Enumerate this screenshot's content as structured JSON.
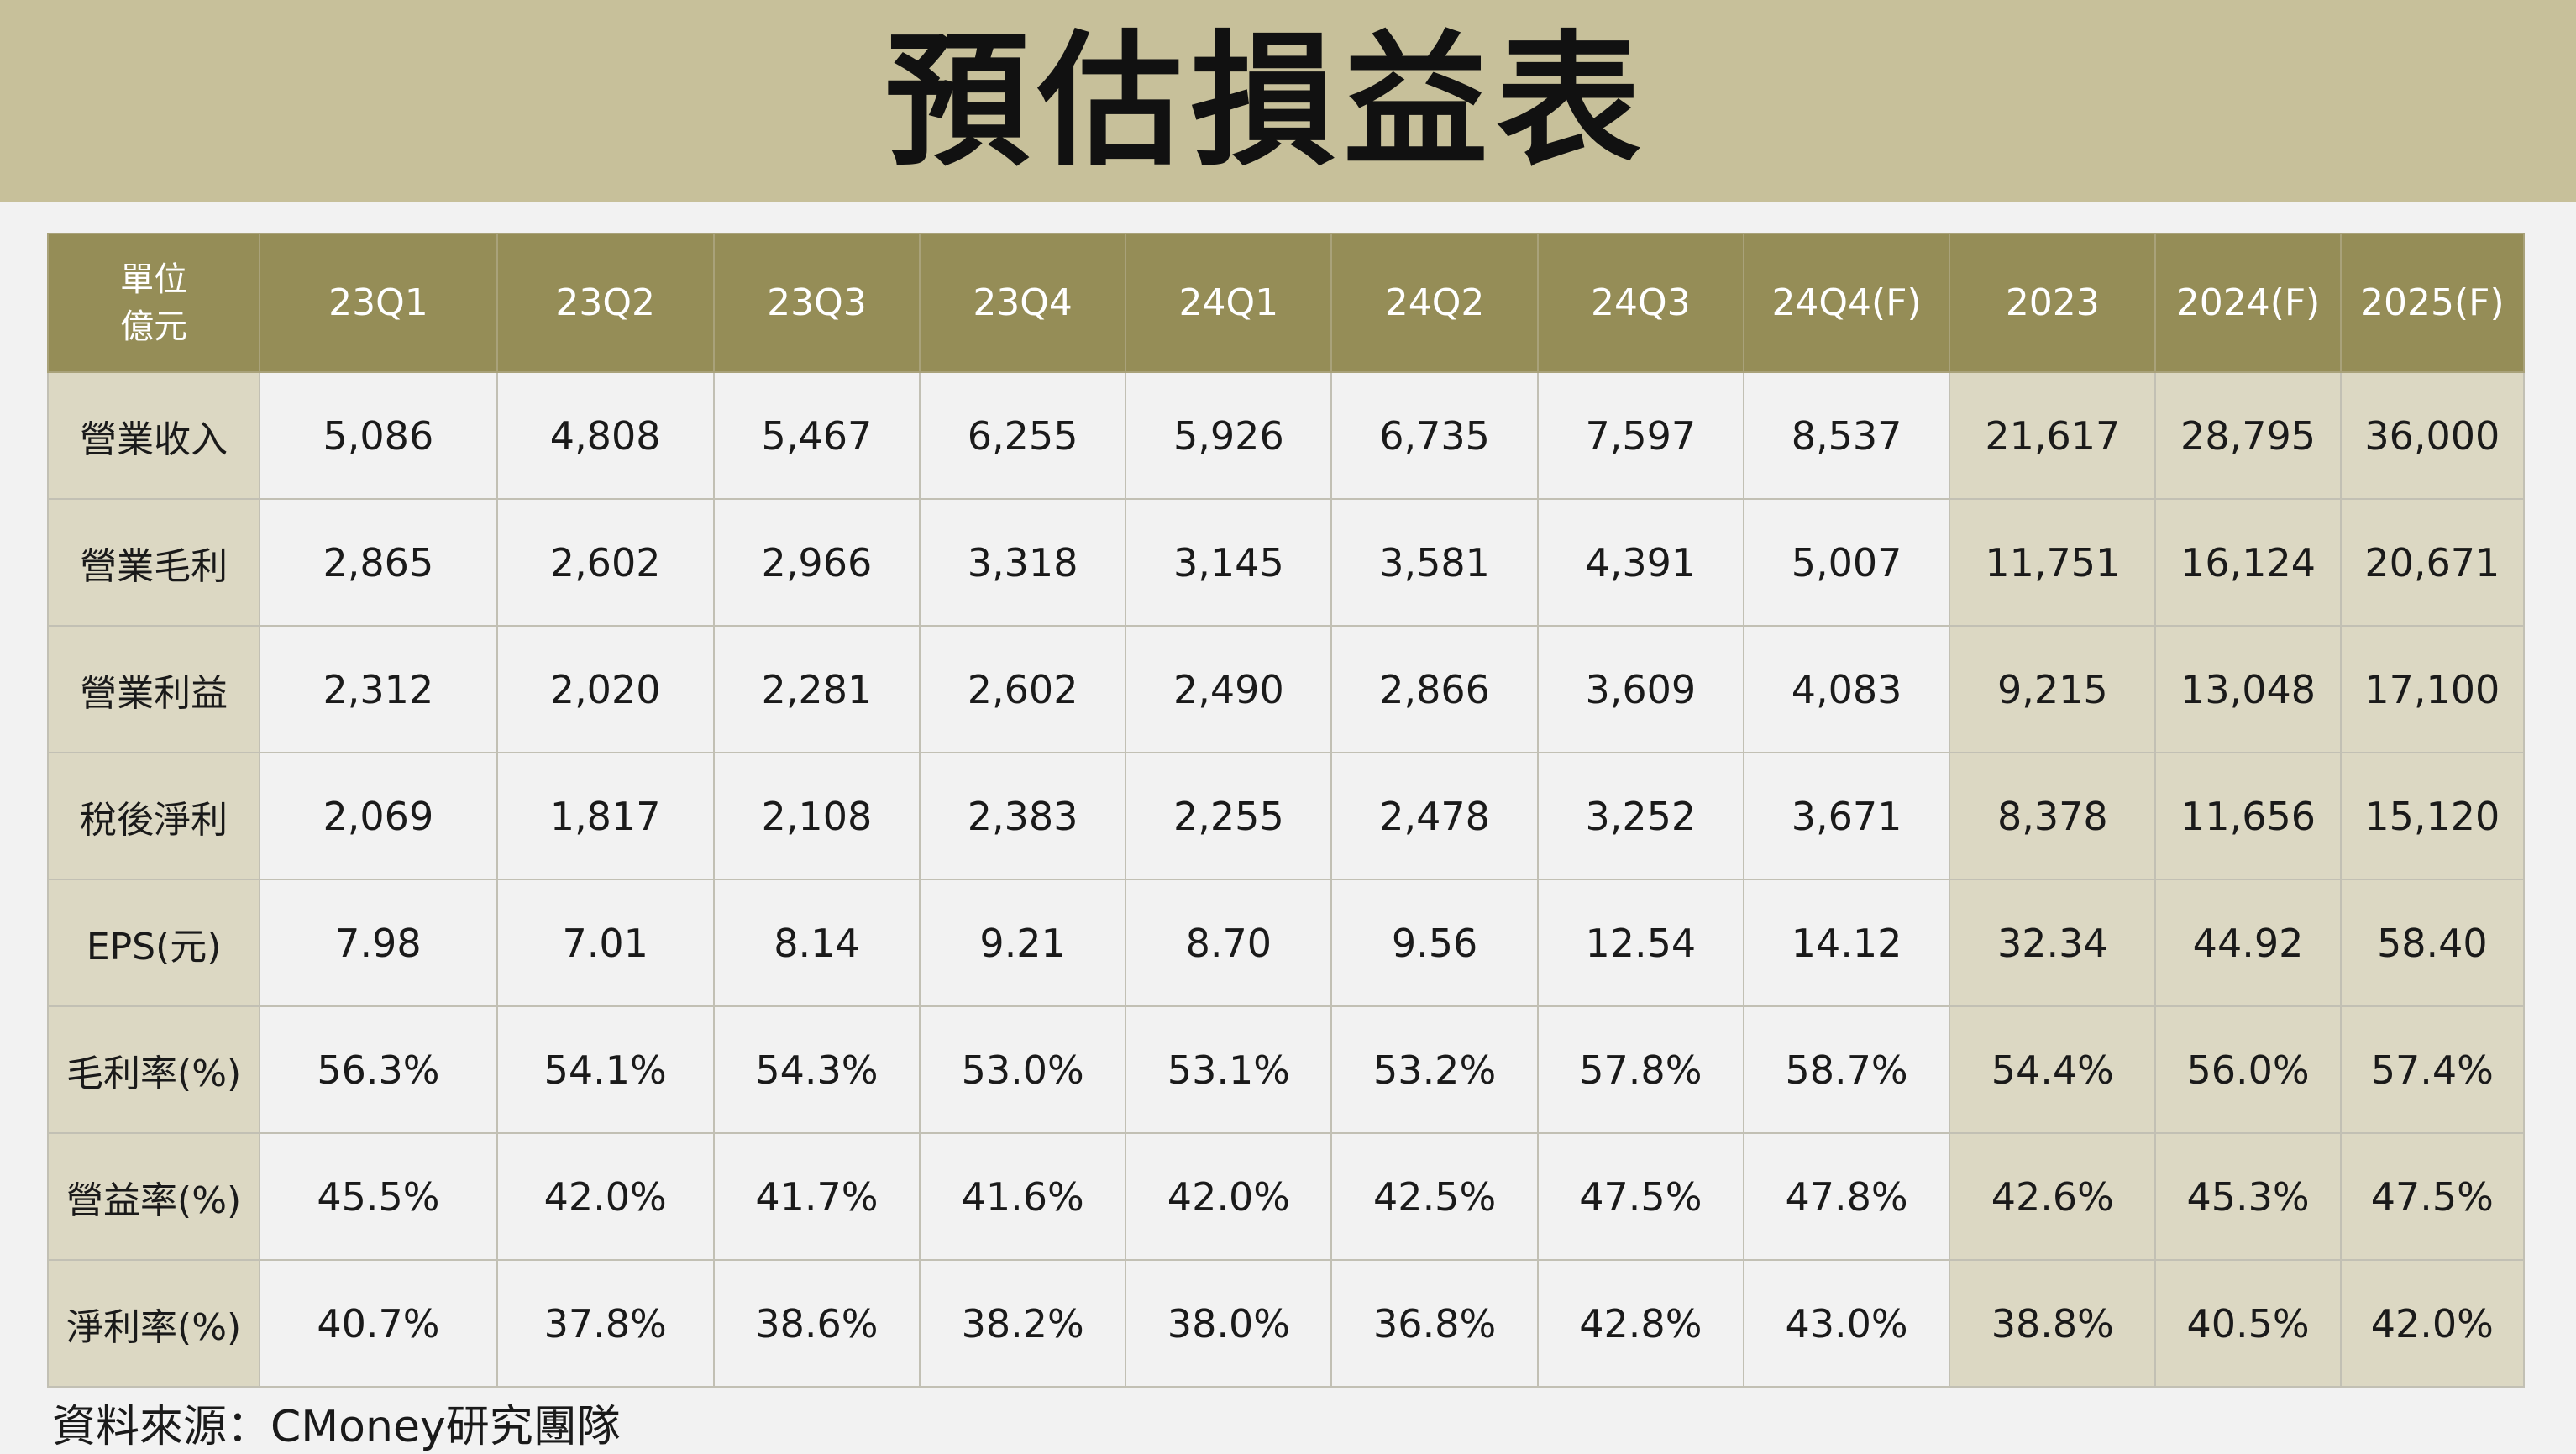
{
  "title": "預估損益表",
  "table": {
    "unit_line1": "單位",
    "unit_line2": "億元",
    "columns": [
      "23Q1",
      "23Q2",
      "23Q3",
      "23Q4",
      "24Q1",
      "24Q2",
      "24Q3",
      "24Q4(F)",
      "2023",
      "2024(F)",
      "2025(F)"
    ],
    "annual_columns_start_index": 8,
    "rows": [
      {
        "label": "營業收入",
        "values": [
          "5,086",
          "4,808",
          "5,467",
          "6,255",
          "5,926",
          "6,735",
          "7,597",
          "8,537",
          "21,617",
          "28,795",
          "36,000"
        ]
      },
      {
        "label": "營業毛利",
        "values": [
          "2,865",
          "2,602",
          "2,966",
          "3,318",
          "3,145",
          "3,581",
          "4,391",
          "5,007",
          "11,751",
          "16,124",
          "20,671"
        ]
      },
      {
        "label": "營業利益",
        "values": [
          "2,312",
          "2,020",
          "2,281",
          "2,602",
          "2,490",
          "2,866",
          "3,609",
          "4,083",
          "9,215",
          "13,048",
          "17,100"
        ]
      },
      {
        "label": "稅後淨利",
        "values": [
          "2,069",
          "1,817",
          "2,108",
          "2,383",
          "2,255",
          "2,478",
          "3,252",
          "3,671",
          "8,378",
          "11,656",
          "15,120"
        ]
      },
      {
        "label": "EPS(元)",
        "values": [
          "7.98",
          "7.01",
          "8.14",
          "9.21",
          "8.70",
          "9.56",
          "12.54",
          "14.12",
          "32.34",
          "44.92",
          "58.40"
        ]
      },
      {
        "label": "毛利率(%)",
        "values": [
          "56.3%",
          "54.1%",
          "54.3%",
          "53.0%",
          "53.1%",
          "53.2%",
          "57.8%",
          "58.7%",
          "54.4%",
          "56.0%",
          "57.4%"
        ]
      },
      {
        "label": "營益率(%)",
        "values": [
          "45.5%",
          "42.0%",
          "41.7%",
          "41.6%",
          "42.0%",
          "42.5%",
          "47.5%",
          "47.8%",
          "42.6%",
          "45.3%",
          "47.5%"
        ]
      },
      {
        "label": "淨利率(%)",
        "values": [
          "40.7%",
          "37.8%",
          "38.6%",
          "38.2%",
          "38.0%",
          "36.8%",
          "42.8%",
          "43.0%",
          "38.8%",
          "40.5%",
          "42.0%"
        ]
      }
    ]
  },
  "source": "資料來源：CMoney研究團隊",
  "colors": {
    "banner": "#c7c09a",
    "header": "#958d57",
    "label_cell": "#dcd8c3",
    "annual_cell": "#dcd8c3",
    "body_cell": "#f2f2f2"
  }
}
